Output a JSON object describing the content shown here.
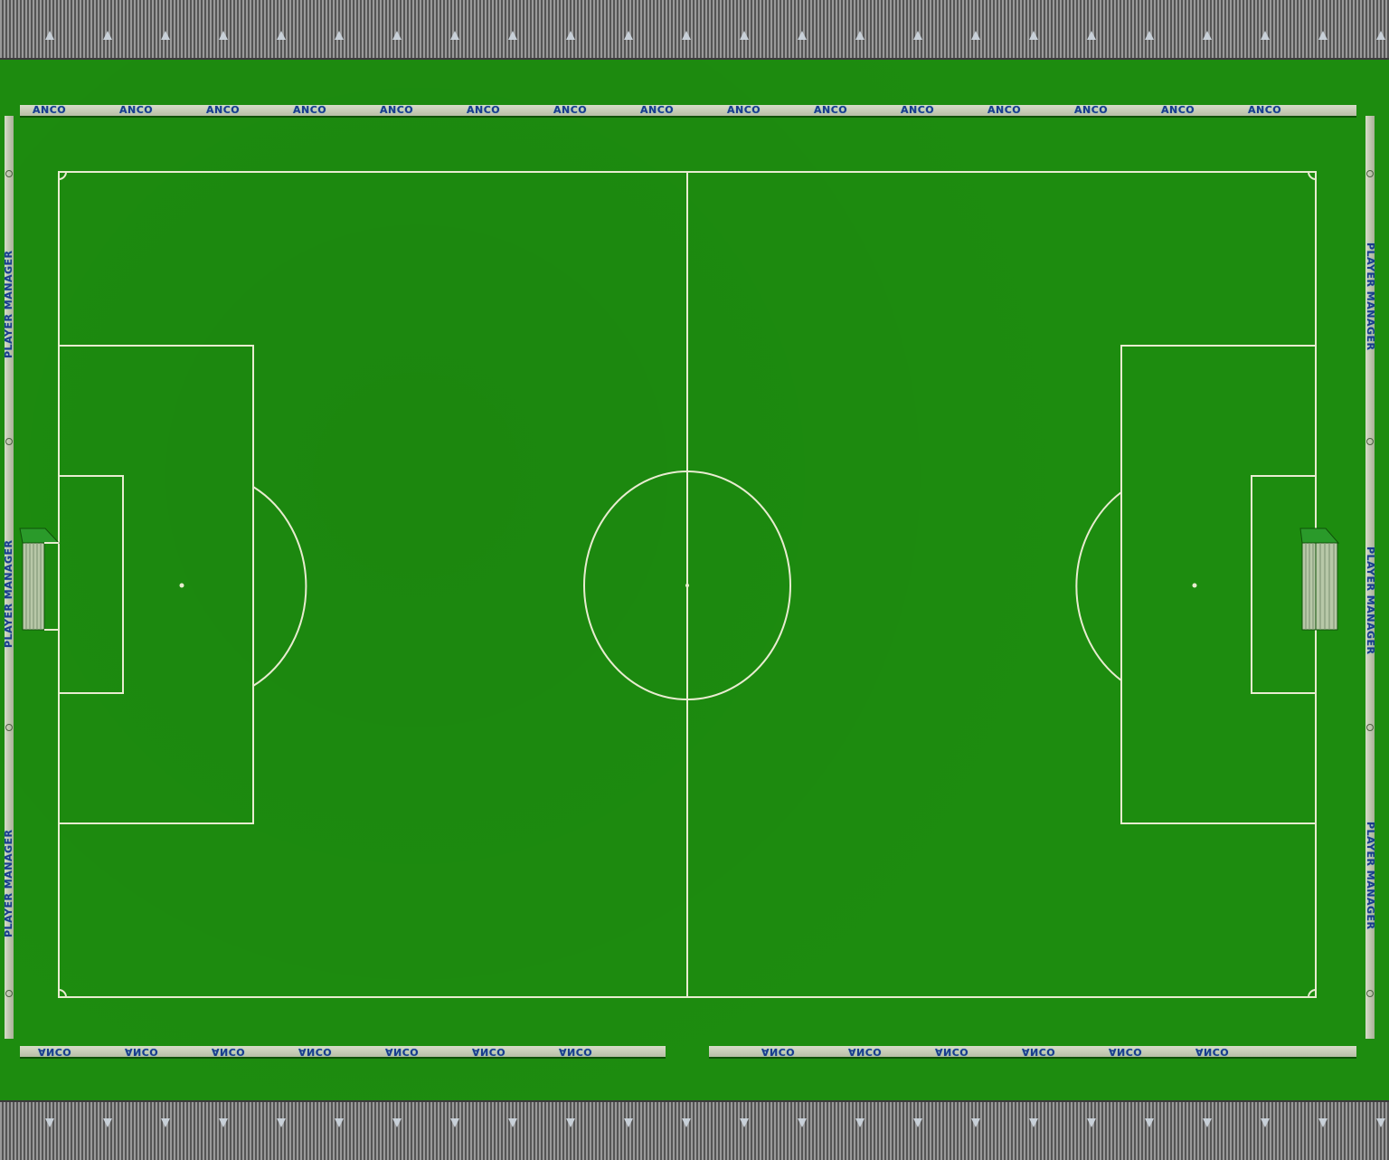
{
  "colors": {
    "grass": "#1d8c0f",
    "lines": "#e8ecd0",
    "board_text": "#1c3a8c",
    "board_bg": "#d7dcc8"
  },
  "ad_boards": {
    "top": [
      "ANCO",
      "ANCO",
      "ANCO",
      "ANCO",
      "ANCO",
      "ANCO",
      "ANCO",
      "ANCO",
      "ANCO",
      "ANCO",
      "ANCO",
      "ANCO",
      "ANCO",
      "ANCO",
      "ANCO"
    ],
    "bottom_left": [
      "ANCO",
      "ANCO",
      "ANCO",
      "ANCO",
      "ANCO",
      "ANCO",
      "ANCO"
    ],
    "bottom_right": [
      "ANCO",
      "ANCO",
      "ANCO",
      "ANCO",
      "ANCO",
      "ANCO"
    ],
    "left": [
      "PLAYER MANAGER",
      "PLAYER MANAGER",
      "PLAYER MANAGER"
    ],
    "right": [
      "PLAYER MANAGER",
      "PLAYER MANAGER",
      "PLAYER MANAGER"
    ]
  },
  "icons": {
    "stand_marker": "spectator-marker-icon",
    "goal": "goal-net-icon"
  }
}
